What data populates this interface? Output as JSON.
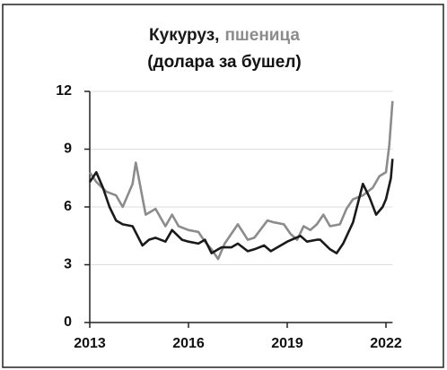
{
  "chart_data": {
    "type": "line",
    "subtitle": "(долара за бушел)",
    "series": [
      {
        "name": "Кукуруз,",
        "color": "#1a1a1a",
        "x": [
          2013.0,
          2013.2,
          2013.4,
          2013.6,
          2013.8,
          2014.0,
          2014.3,
          2014.6,
          2014.8,
          2015.0,
          2015.3,
          2015.5,
          2015.8,
          2016.0,
          2016.3,
          2016.5,
          2016.7,
          2017.0,
          2017.3,
          2017.5,
          2017.8,
          2018.0,
          2018.3,
          2018.5,
          2018.8,
          2019.0,
          2019.4,
          2019.6,
          2019.9,
          2020.0,
          2020.3,
          2020.5,
          2020.7,
          2021.0,
          2021.3,
          2021.5,
          2021.7,
          2021.9,
          2022.0,
          2022.15,
          2022.2
        ],
        "values": [
          7.3,
          7.8,
          7.0,
          6.0,
          5.3,
          5.1,
          5.0,
          4.0,
          4.3,
          4.4,
          4.2,
          4.8,
          4.3,
          4.2,
          4.1,
          4.3,
          3.6,
          3.9,
          3.9,
          4.1,
          3.7,
          3.8,
          4.0,
          3.7,
          4.0,
          4.2,
          4.5,
          4.2,
          4.3,
          4.3,
          3.8,
          3.6,
          4.1,
          5.2,
          7.2,
          6.5,
          5.6,
          6.0,
          6.4,
          7.5,
          8.5
        ]
      },
      {
        "name": "пшеница",
        "color": "#8c8c8c",
        "x": [
          2013.0,
          2013.2,
          2013.5,
          2013.8,
          2014.0,
          2014.3,
          2014.4,
          2014.7,
          2015.0,
          2015.3,
          2015.5,
          2015.7,
          2016.0,
          2016.3,
          2016.5,
          2016.7,
          2016.9,
          2017.1,
          2017.5,
          2017.8,
          2018.0,
          2018.4,
          2018.6,
          2018.9,
          2019.1,
          2019.3,
          2019.5,
          2019.7,
          2019.9,
          2020.1,
          2020.3,
          2020.6,
          2020.8,
          2021.0,
          2021.3,
          2021.6,
          2021.8,
          2022.0,
          2022.1,
          2022.2
        ],
        "values": [
          7.8,
          7.3,
          6.8,
          6.6,
          6.0,
          7.2,
          8.3,
          5.6,
          5.9,
          5.0,
          5.6,
          5.0,
          4.8,
          4.7,
          4.2,
          3.8,
          3.3,
          4.1,
          5.1,
          4.3,
          4.4,
          5.3,
          5.2,
          5.1,
          4.6,
          4.3,
          5.0,
          4.8,
          5.1,
          5.6,
          5.0,
          5.1,
          5.9,
          6.4,
          6.6,
          7.0,
          7.6,
          7.8,
          9.2,
          11.5
        ]
      }
    ],
    "xlim": [
      2013,
      2022.2
    ],
    "xticks": [
      2013,
      2016,
      2019,
      2022
    ],
    "ylim": [
      0,
      12
    ],
    "yticks": [
      0,
      3,
      6,
      9,
      12
    ],
    "grid": true
  }
}
